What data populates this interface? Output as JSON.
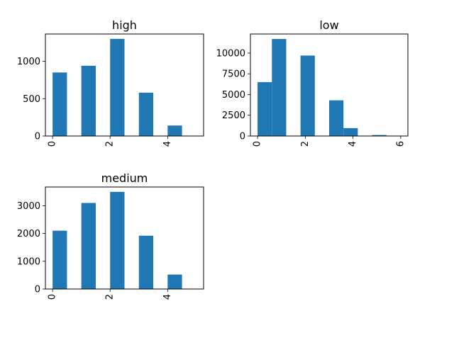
{
  "chart_data": [
    {
      "type": "bar",
      "title": "high",
      "color": "#1f77b4",
      "xlim": [
        -0.25,
        5.25
      ],
      "ylim": [
        0,
        1365
      ],
      "xticks": [
        0,
        2,
        4
      ],
      "yticks": [
        0,
        500,
        1000
      ],
      "xtick_rotation": -90,
      "bins": [
        {
          "x0": 0.0,
          "x1": 0.5,
          "value": 850
        },
        {
          "x0": 1.0,
          "x1": 1.5,
          "value": 940
        },
        {
          "x0": 2.0,
          "x1": 2.5,
          "value": 1300
        },
        {
          "x0": 3.0,
          "x1": 3.5,
          "value": 580
        },
        {
          "x0": 4.0,
          "x1": 4.5,
          "value": 140
        }
      ]
    },
    {
      "type": "bar",
      "title": "low",
      "color": "#1f77b4",
      "xlim": [
        -0.3,
        6.3
      ],
      "ylim": [
        0,
        12300
      ],
      "xticks": [
        0,
        2,
        4,
        6
      ],
      "yticks": [
        0,
        2500,
        5000,
        7500,
        10000
      ],
      "xtick_rotation": -90,
      "bins": [
        {
          "x0": 0.0,
          "x1": 0.6,
          "value": 6500
        },
        {
          "x0": 0.6,
          "x1": 1.2,
          "value": 11700
        },
        {
          "x0": 1.8,
          "x1": 2.4,
          "value": 9700
        },
        {
          "x0": 3.0,
          "x1": 3.6,
          "value": 4300
        },
        {
          "x0": 3.6,
          "x1": 4.2,
          "value": 950
        },
        {
          "x0": 4.8,
          "x1": 5.4,
          "value": 120
        },
        {
          "x0": 5.4,
          "x1": 6.0,
          "value": 20
        }
      ]
    },
    {
      "type": "bar",
      "title": "medium",
      "color": "#1f77b4",
      "xlim": [
        -0.25,
        5.25
      ],
      "ylim": [
        0,
        3675
      ],
      "xticks": [
        0,
        2,
        4
      ],
      "yticks": [
        0,
        1000,
        2000,
        3000
      ],
      "xtick_rotation": -90,
      "bins": [
        {
          "x0": 0.0,
          "x1": 0.5,
          "value": 2100
        },
        {
          "x0": 1.0,
          "x1": 1.5,
          "value": 3100
        },
        {
          "x0": 2.0,
          "x1": 2.5,
          "value": 3500
        },
        {
          "x0": 3.0,
          "x1": 3.5,
          "value": 1920
        },
        {
          "x0": 4.0,
          "x1": 4.5,
          "value": 520
        }
      ]
    }
  ]
}
